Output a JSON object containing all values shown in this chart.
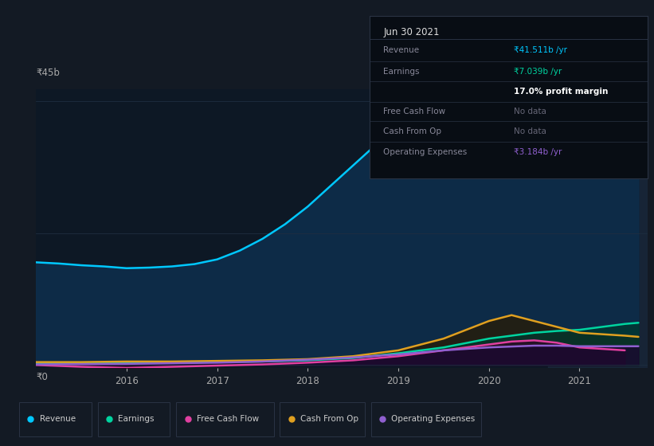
{
  "bg_color": "#131a24",
  "chart_area_color": "#0d1825",
  "shaded_color": "#1a2535",
  "grid_color": "#1e2e40",
  "ylabel_45b": "₹45b",
  "ylabel_0": "₹0",
  "xlabel_years": [
    2016,
    2017,
    2018,
    2019,
    2020,
    2021
  ],
  "xlim": [
    2015.0,
    2021.75
  ],
  "ylim": [
    -0.5,
    47
  ],
  "series": {
    "Revenue": {
      "color": "#00c8ff",
      "fill_alpha": 0.85,
      "fill_color": "#0a3a5a",
      "x": [
        2015.0,
        2015.25,
        2015.5,
        2015.75,
        2016.0,
        2016.25,
        2016.5,
        2016.75,
        2017.0,
        2017.25,
        2017.5,
        2017.75,
        2018.0,
        2018.25,
        2018.5,
        2018.75,
        2019.0,
        2019.25,
        2019.5,
        2019.75,
        2020.0,
        2020.25,
        2020.5,
        2020.6,
        2020.75,
        2021.0,
        2021.25,
        2021.5,
        2021.65
      ],
      "y": [
        17.5,
        17.3,
        17.0,
        16.8,
        16.5,
        16.6,
        16.8,
        17.2,
        18.0,
        19.5,
        21.5,
        24.0,
        27.0,
        30.5,
        34.0,
        37.5,
        40.5,
        42.5,
        43.5,
        44.2,
        44.0,
        42.0,
        38.0,
        35.5,
        33.5,
        32.0,
        34.0,
        38.0,
        41.5
      ]
    },
    "Earnings": {
      "color": "#00d4a0",
      "fill_alpha": 0.7,
      "fill_color": "#003a30",
      "x": [
        2015.0,
        2015.5,
        2016.0,
        2016.5,
        2017.0,
        2017.5,
        2018.0,
        2018.5,
        2019.0,
        2019.5,
        2020.0,
        2020.5,
        2020.75,
        2021.0,
        2021.5,
        2021.65
      ],
      "y": [
        0.3,
        0.3,
        0.4,
        0.4,
        0.5,
        0.6,
        0.8,
        1.2,
        2.0,
        3.0,
        4.5,
        5.5,
        5.8,
        6.0,
        7.0,
        7.2
      ]
    },
    "Free Cash Flow": {
      "color": "#e040a0",
      "fill_alpha": 0.6,
      "fill_color": "#3a0025",
      "x": [
        2015.0,
        2015.5,
        2016.0,
        2016.5,
        2016.75,
        2017.0,
        2017.5,
        2018.0,
        2018.5,
        2019.0,
        2019.5,
        2020.0,
        2020.25,
        2020.5,
        2020.75,
        2021.0,
        2021.5
      ],
      "y": [
        0.0,
        -0.3,
        -0.5,
        -0.3,
        -0.2,
        -0.1,
        0.1,
        0.4,
        0.8,
        1.5,
        2.5,
        3.5,
        4.0,
        4.2,
        3.8,
        3.0,
        2.5
      ]
    },
    "Cash From Op": {
      "color": "#e0a020",
      "fill_alpha": 0.7,
      "fill_color": "#2a1a00",
      "x": [
        2015.0,
        2015.5,
        2016.0,
        2016.5,
        2017.0,
        2017.5,
        2018.0,
        2018.5,
        2019.0,
        2019.5,
        2019.75,
        2020.0,
        2020.25,
        2020.5,
        2020.75,
        2021.0,
        2021.5,
        2021.65
      ],
      "y": [
        0.5,
        0.5,
        0.6,
        0.6,
        0.7,
        0.8,
        1.0,
        1.5,
        2.5,
        4.5,
        6.0,
        7.5,
        8.5,
        7.5,
        6.5,
        5.5,
        5.0,
        4.8
      ]
    },
    "Operating Expenses": {
      "color": "#9060d0",
      "fill_alpha": 0.8,
      "fill_color": "#1a0830",
      "x": [
        2015.0,
        2015.5,
        2016.0,
        2016.5,
        2017.0,
        2017.5,
        2018.0,
        2018.5,
        2019.0,
        2019.5,
        2020.0,
        2020.5,
        2020.75,
        2021.0,
        2021.5,
        2021.65
      ],
      "y": [
        0.1,
        0.15,
        0.2,
        0.3,
        0.4,
        0.6,
        0.9,
        1.3,
        1.8,
        2.5,
        3.0,
        3.3,
        3.3,
        3.2,
        3.2,
        3.2
      ]
    }
  },
  "shaded_x_start": 2020.65,
  "info_box": {
    "title": "Jun 30 2021",
    "rows": [
      {
        "label": "Revenue",
        "value": "₹41.511b /yr",
        "value_color": "#00c8ff",
        "sep_after": false
      },
      {
        "label": "Earnings",
        "value": "₹7.039b /yr",
        "value_color": "#00d4a0",
        "sep_after": false
      },
      {
        "label": "",
        "value": "17.0% profit margin",
        "value_color": "#ffffff",
        "sep_after": true
      },
      {
        "label": "Free Cash Flow",
        "value": "No data",
        "value_color": "#666677",
        "sep_after": true
      },
      {
        "label": "Cash From Op",
        "value": "No data",
        "value_color": "#666677",
        "sep_after": true
      },
      {
        "label": "Operating Expenses",
        "value": "₹3.184b /yr",
        "value_color": "#9060d0",
        "sep_after": false
      }
    ]
  },
  "legend": [
    {
      "label": "Revenue",
      "color": "#00c8ff"
    },
    {
      "label": "Earnings",
      "color": "#00d4a0"
    },
    {
      "label": "Free Cash Flow",
      "color": "#e040a0"
    },
    {
      "label": "Cash From Op",
      "color": "#e0a020"
    },
    {
      "label": "Operating Expenses",
      "color": "#9060d0"
    }
  ]
}
